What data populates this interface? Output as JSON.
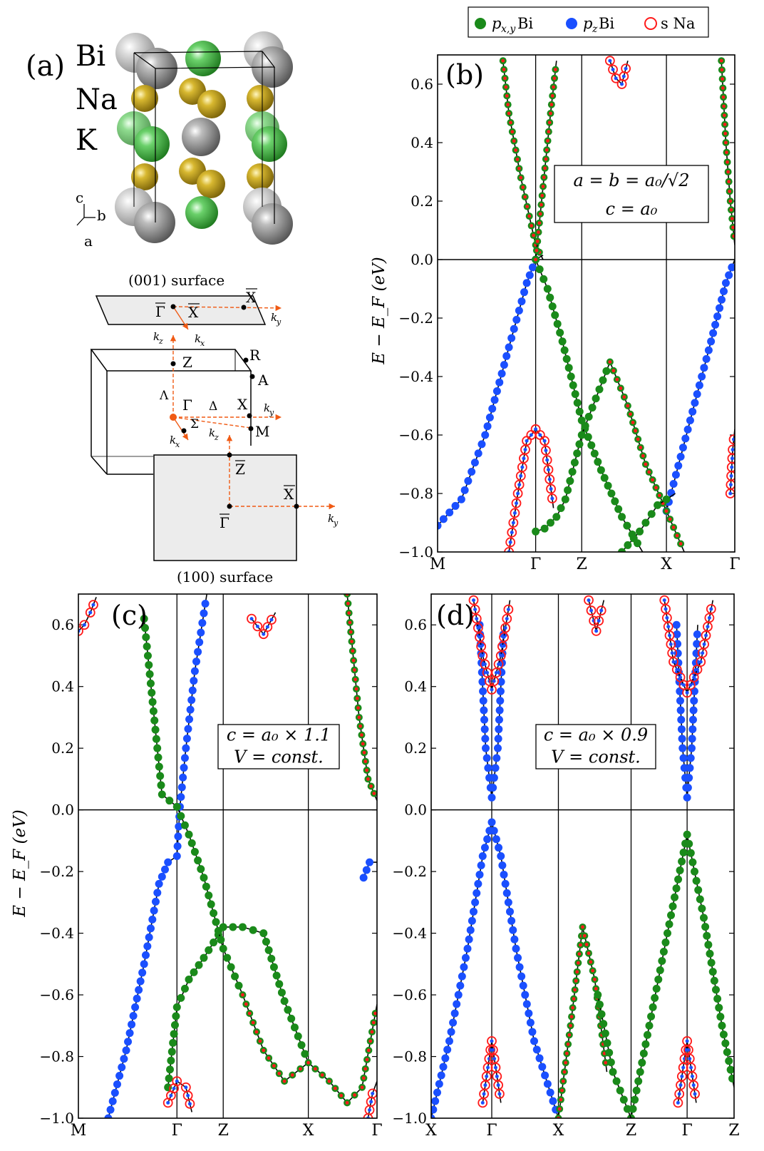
{
  "legend": {
    "entries": [
      {
        "label": "p_{x,y} Bi",
        "main": "p",
        "sub": "x,y",
        "rest": " Bi",
        "color": "#1a8a1a",
        "style": "filled"
      },
      {
        "label": "p_z Bi",
        "main": "p",
        "sub": "z",
        "rest": " Bi",
        "color": "#1a4fff",
        "style": "filled"
      },
      {
        "label": "s Na",
        "main": "",
        "sub": "",
        "rest": "s Na",
        "color": "#ff1a1a",
        "style": "open"
      }
    ]
  },
  "panel_a": {
    "label": "(a)",
    "atoms": [
      "Bi",
      "Na",
      "K"
    ],
    "axes": [
      "c",
      "b",
      "a"
    ],
    "atom_colors": {
      "Bi": "#8c8c8c",
      "Na": "#c8a818",
      "K": "#46b446"
    },
    "surface_001": "(001) surface",
    "surface_100": "(100) surface",
    "bz_points": [
      "Γ",
      "Z",
      "R",
      "A",
      "X",
      "M"
    ],
    "bz_lines": [
      "Λ",
      "Δ",
      "Σ"
    ],
    "surface_points": [
      "Γ",
      "X",
      "Z"
    ],
    "k_labels": {
      "kx": "k",
      "kx_sub": "x",
      "ky": "k",
      "ky_sub": "y",
      "kz": "k",
      "kz_sub": "z"
    }
  },
  "chart_data": [
    {
      "type": "line",
      "panel": "(b)",
      "ylabel": "E − E_F (eV)",
      "ylim": [
        -1.0,
        0.7
      ],
      "yticks": [
        -1.0,
        -0.8,
        -0.6,
        -0.4,
        -0.2,
        0.0,
        0.2,
        0.4,
        0.6
      ],
      "ytick_labels": [
        "−1.0",
        "−0.8",
        "−0.6",
        "−0.4",
        "−0.2",
        "0.0",
        "0.2",
        "0.4",
        "0.6"
      ],
      "kpath": [
        "M",
        "Γ",
        "Z",
        "X",
        "Γ"
      ],
      "kpos": [
        0,
        0.33,
        0.485,
        0.77,
        1.0
      ],
      "annotation": [
        "a = b = a₀/√2",
        "c = a₀"
      ],
      "series": [
        {
          "orbital": "pz",
          "x": [
            0,
            0.08,
            0.16,
            0.24,
            0.3,
            0.33,
            0.355
          ],
          "y": [
            -0.91,
            -0.82,
            -0.6,
            -0.3,
            -0.08,
            0.0,
            0.015
          ]
        },
        {
          "orbital": "pz",
          "x": [
            0.77,
            0.85,
            0.92,
            0.97,
            1.0
          ],
          "y": [
            -0.86,
            -0.55,
            -0.28,
            -0.08,
            0.0
          ]
        },
        {
          "orbital": "pxy",
          "x": [
            0.33,
            0.37,
            0.42,
            0.485,
            0.55,
            0.62,
            0.69
          ],
          "y": [
            0.0,
            -0.1,
            -0.28,
            -0.55,
            -0.72,
            -0.88,
            -1.0
          ]
        },
        {
          "orbital": "pxy",
          "x": [
            0.33,
            0.36,
            0.4,
            0.43,
            0.485,
            0.58
          ],
          "y": [
            -0.93,
            -0.92,
            -0.88,
            -0.82,
            -0.6,
            -0.35
          ]
        },
        {
          "orbital": "mix",
          "x": [
            0.58,
            0.64,
            0.7,
            0.77,
            0.83
          ],
          "y": [
            -0.35,
            -0.5,
            -0.7,
            -0.86,
            -1.0
          ]
        },
        {
          "orbital": "pxy",
          "x": [
            0.62,
            0.68,
            0.74,
            0.77,
            0.8
          ],
          "y": [
            -1.0,
            -0.93,
            -0.84,
            -0.82,
            -0.8
          ]
        },
        {
          "orbital": "mix",
          "x": [
            0.22,
            0.24,
            0.28,
            0.33,
            0.355
          ],
          "y": [
            0.68,
            0.5,
            0.28,
            0.05,
            0.0
          ]
        },
        {
          "orbital": "mix",
          "x": [
            0.33,
            0.355,
            0.38,
            0.4
          ],
          "y": [
            0.0,
            0.25,
            0.5,
            0.68
          ]
        },
        {
          "orbital": "mix",
          "x": [
            0.955,
            0.97,
            0.985,
            1.0
          ],
          "y": [
            0.68,
            0.4,
            0.2,
            0.05
          ]
        },
        {
          "orbital": "s",
          "x": [
            0.24,
            0.27,
            0.3,
            0.33,
            0.36,
            0.39
          ],
          "y": [
            -1.0,
            -0.8,
            -0.62,
            -0.58,
            -0.62,
            -0.85
          ]
        },
        {
          "orbital": "s",
          "x": [
            0.58,
            0.6,
            0.62,
            0.64
          ],
          "y": [
            0.68,
            0.62,
            0.6,
            0.68
          ]
        },
        {
          "orbital": "s",
          "x": [
            0.985,
            0.993,
            1.0
          ],
          "y": [
            -0.8,
            -0.65,
            -0.58
          ]
        }
      ]
    },
    {
      "type": "line",
      "panel": "(c)",
      "ylabel": "E − E_F (eV)",
      "ylim": [
        -1.0,
        0.7
      ],
      "yticks": [
        -1.0,
        -0.8,
        -0.6,
        -0.4,
        -0.2,
        0.0,
        0.2,
        0.4,
        0.6
      ],
      "ytick_labels": [
        "−1.0",
        "−0.8",
        "−0.6",
        "−0.4",
        "−0.2",
        "0.0",
        "0.2",
        "0.4",
        "0.6"
      ],
      "kpath": [
        "M",
        "Γ",
        "Z",
        "X",
        "Γ"
      ],
      "kpos": [
        0,
        0.33,
        0.485,
        0.77,
        1.0
      ],
      "annotation": [
        "c = a₀ × 1.1",
        "V = const."
      ],
      "series": [
        {
          "orbital": "pz",
          "x": [
            0.1,
            0.16,
            0.22,
            0.27,
            0.3,
            0.33
          ],
          "y": [
            -1.0,
            -0.78,
            -0.5,
            -0.24,
            -0.17,
            -0.15
          ]
        },
        {
          "orbital": "pz",
          "x": [
            0.33,
            0.34,
            0.36,
            0.39,
            0.43
          ],
          "y": [
            -0.15,
            0.01,
            0.2,
            0.45,
            0.7
          ]
        },
        {
          "orbital": "pz",
          "x": [
            0.955,
            0.975,
            1.0
          ],
          "y": [
            -0.22,
            -0.17,
            -0.17
          ]
        },
        {
          "orbital": "pxy",
          "x": [
            0.3,
            0.33,
            0.37,
            0.42,
            0.485,
            0.55,
            0.62,
            0.69,
            0.77
          ],
          "y": [
            -0.9,
            -0.64,
            -0.55,
            -0.48,
            -0.38,
            -0.38,
            -0.4,
            -0.62,
            -0.82
          ]
        },
        {
          "orbital": "pxy",
          "x": [
            0.22,
            0.28,
            0.33,
            0.37,
            0.42,
            0.485,
            0.55
          ],
          "y": [
            0.62,
            0.05,
            0.01,
            -0.08,
            -0.22,
            -0.45,
            -0.6
          ]
        },
        {
          "orbital": "mix",
          "x": [
            0.55,
            0.62,
            0.69,
            0.77,
            0.84,
            0.9,
            0.95,
            1.0
          ],
          "y": [
            -0.6,
            -0.78,
            -0.88,
            -0.82,
            -0.88,
            -0.95,
            -0.9,
            -0.63
          ]
        },
        {
          "orbital": "mix",
          "x": [
            0.9,
            0.94,
            0.97,
            1.0
          ],
          "y": [
            0.7,
            0.3,
            0.1,
            0.03
          ]
        },
        {
          "orbital": "s",
          "x": [
            0.0,
            0.02,
            0.04,
            0.06
          ],
          "y": [
            0.58,
            0.6,
            0.64,
            0.69
          ]
        },
        {
          "orbital": "s",
          "x": [
            0.3,
            0.33,
            0.36,
            0.38
          ],
          "y": [
            -0.95,
            -0.88,
            -0.9,
            -0.98
          ]
        },
        {
          "orbital": "s",
          "x": [
            0.58,
            0.62,
            0.66
          ],
          "y": [
            0.62,
            0.57,
            0.64
          ]
        },
        {
          "orbital": "s",
          "x": [
            0.97,
            0.985,
            1.0
          ],
          "y": [
            -1.0,
            -0.92,
            -0.88
          ]
        }
      ]
    },
    {
      "type": "line",
      "panel": "(d)",
      "ylabel": "",
      "ylim": [
        -1.0,
        0.7
      ],
      "yticks": [
        -1.0,
        -0.8,
        -0.6,
        -0.4,
        -0.2,
        0.0,
        0.2,
        0.4,
        0.6
      ],
      "ytick_labels": [
        "−1.0",
        "−0.8",
        "−0.6",
        "−0.4",
        "−0.2",
        "0.0",
        "0.2",
        "0.4",
        "0.6"
      ],
      "kpath": [
        "X",
        "Γ",
        "X",
        "Z",
        "Γ",
        "Z"
      ],
      "kpos": [
        0,
        0.2,
        0.42,
        0.66,
        0.845,
        1.0
      ],
      "annotation": [
        "c = a₀ × 0.9",
        "V = const."
      ],
      "series": [
        {
          "orbital": "pz",
          "x": [
            0.0,
            0.06,
            0.12,
            0.17,
            0.2,
            0.23,
            0.28,
            0.34,
            0.42
          ],
          "y": [
            -1.0,
            -0.75,
            -0.45,
            -0.15,
            -0.04,
            -0.15,
            -0.45,
            -0.75,
            -1.0
          ]
        },
        {
          "orbital": "pz",
          "x": [
            0.16,
            0.18,
            0.2,
            0.22,
            0.24
          ],
          "y": [
            0.6,
            0.2,
            0.04,
            0.2,
            0.6
          ]
        },
        {
          "orbital": "pz",
          "x": [
            0.81,
            0.83,
            0.845,
            0.86,
            0.88
          ],
          "y": [
            0.6,
            0.2,
            0.04,
            0.2,
            0.6
          ]
        },
        {
          "orbital": "mix",
          "x": [
            0.42,
            0.46,
            0.5,
            0.54,
            0.58
          ],
          "y": [
            -1.0,
            -0.7,
            -0.38,
            -0.55,
            -0.85
          ]
        },
        {
          "orbital": "pxy",
          "x": [
            0.66,
            0.72,
            0.78,
            0.845,
            0.9,
            0.96,
            1.0
          ],
          "y": [
            -1.0,
            -0.7,
            -0.4,
            -0.08,
            -0.35,
            -0.7,
            -0.9
          ]
        },
        {
          "orbital": "pxy",
          "x": [
            0.55,
            0.6,
            0.66
          ],
          "y": [
            -0.6,
            -0.85,
            -1.0
          ]
        },
        {
          "orbital": "s",
          "x": [
            0.14,
            0.17,
            0.2,
            0.23,
            0.26
          ],
          "y": [
            0.68,
            0.5,
            0.39,
            0.5,
            0.68
          ]
        },
        {
          "orbital": "s",
          "x": [
            0.77,
            0.8,
            0.845,
            0.89,
            0.93
          ],
          "y": [
            0.68,
            0.48,
            0.38,
            0.48,
            0.68
          ]
        },
        {
          "orbital": "s",
          "x": [
            0.17,
            0.2,
            0.23
          ],
          "y": [
            -0.95,
            -0.75,
            -0.95
          ]
        },
        {
          "orbital": "s",
          "x": [
            0.815,
            0.845,
            0.875
          ],
          "y": [
            -0.95,
            -0.75,
            -0.95
          ]
        },
        {
          "orbital": "s",
          "x": [
            0.52,
            0.545,
            0.57
          ],
          "y": [
            0.68,
            0.58,
            0.68
          ]
        }
      ]
    }
  ]
}
